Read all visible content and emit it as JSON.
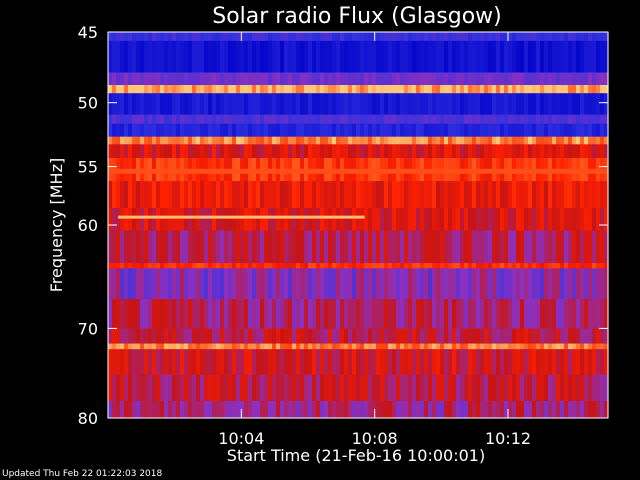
{
  "page": {
    "background": "#000000",
    "foreground": "#ffffff",
    "updated": "Updated Thu Feb 22 01:22:03 2018"
  },
  "chart_data": {
    "type": "heatmap",
    "title": "Solar radio Flux (Glasgow)",
    "xlabel": "Start Time (21-Feb-16 10:00:01)",
    "ylabel": "Frequency [MHz]",
    "x_unit": "minutes after 10:00:01",
    "xlim": [
      0,
      15
    ],
    "ylim": [
      45,
      80
    ],
    "y_scale": "log",
    "y_inverted": true,
    "x_ticks": [
      {
        "value": 4,
        "label": "10:04"
      },
      {
        "value": 8,
        "label": "10:08"
      },
      {
        "value": 12,
        "label": "10:12"
      }
    ],
    "y_ticks": [
      {
        "value": 45,
        "label": "45"
      },
      {
        "value": 50,
        "label": "50"
      },
      {
        "value": 55,
        "label": "55"
      },
      {
        "value": 60,
        "label": "60"
      },
      {
        "value": 70,
        "label": "70"
      },
      {
        "value": 80,
        "label": "80"
      }
    ],
    "colormap": [
      "#0000c8",
      "#3030e0",
      "#8c30c0",
      "#c81414",
      "#ff2000",
      "#ff5a1e",
      "#ffc878"
    ],
    "frequency_bands": [
      {
        "from": 45.0,
        "to": 45.6,
        "level": 0.18
      },
      {
        "from": 45.6,
        "to": 47.8,
        "level": 0.06
      },
      {
        "from": 47.8,
        "to": 48.7,
        "level": 0.28
      },
      {
        "from": 48.7,
        "to": 49.3,
        "level": 0.97
      },
      {
        "from": 49.3,
        "to": 50.9,
        "level": 0.08
      },
      {
        "from": 50.9,
        "to": 51.6,
        "level": 0.22
      },
      {
        "from": 51.6,
        "to": 52.6,
        "level": 0.12
      },
      {
        "from": 52.6,
        "to": 53.2,
        "level": 0.9
      },
      {
        "from": 53.2,
        "to": 54.3,
        "level": 0.55
      },
      {
        "from": 54.3,
        "to": 56.2,
        "level": 0.72
      },
      {
        "from": 56.2,
        "to": 58.5,
        "level": 0.6
      },
      {
        "from": 58.5,
        "to": 60.5,
        "level": 0.54
      },
      {
        "from": 60.5,
        "to": 63.5,
        "level": 0.45
      },
      {
        "from": 63.5,
        "to": 64.0,
        "level": 0.7
      },
      {
        "from": 64.0,
        "to": 67.0,
        "level": 0.33
      },
      {
        "from": 67.0,
        "to": 70.0,
        "level": 0.42
      },
      {
        "from": 70.0,
        "to": 71.6,
        "level": 0.48
      },
      {
        "from": 71.6,
        "to": 72.2,
        "level": 0.88
      },
      {
        "from": 72.2,
        "to": 75.0,
        "level": 0.52
      },
      {
        "from": 75.0,
        "to": 78.0,
        "level": 0.47
      },
      {
        "from": 78.0,
        "to": 80.0,
        "level": 0.4
      }
    ],
    "features": [
      {
        "type": "bright-line",
        "t_start": 0.3,
        "t_end": 7.7,
        "freq": 59.3,
        "level": 0.98
      },
      {
        "type": "bright-strip",
        "t_start": 0.0,
        "t_end": 15.0,
        "freq": 55.3,
        "level": 0.8
      }
    ]
  }
}
